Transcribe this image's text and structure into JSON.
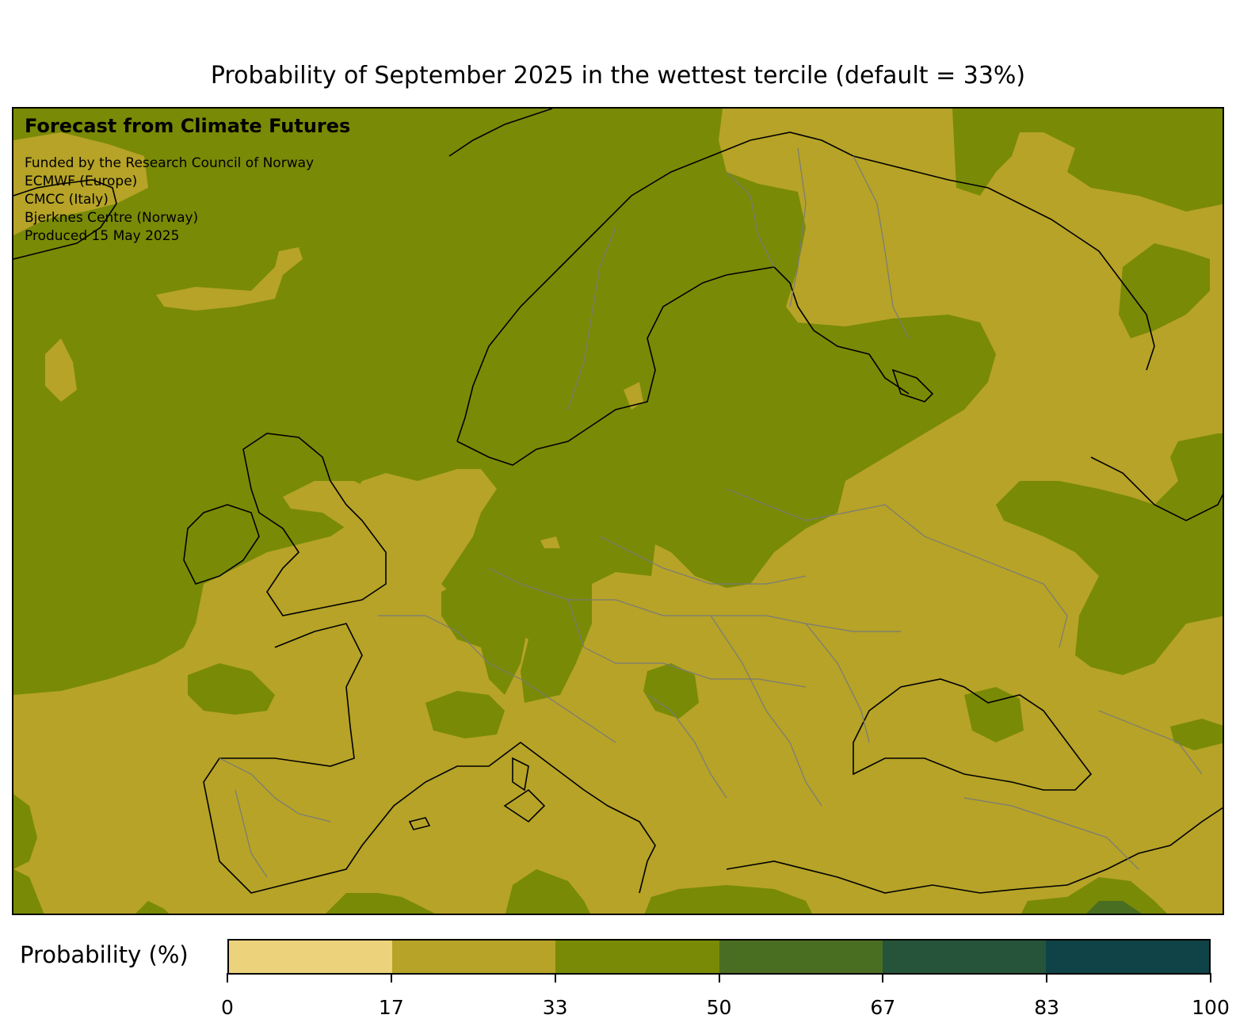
{
  "title": "Probability of September 2025 in the wettest tercile (default = 33%)",
  "credits": {
    "heading": "Forecast from Climate Futures",
    "lines": [
      "Funded by the Research Council of Norway",
      "ECMWF (Europe)",
      "CMCC (Italy)",
      "Bjerknes Centre (Norway)",
      "Produced 15 May 2025"
    ]
  },
  "colorbar": {
    "label": "Probability (%)",
    "ticks": [
      "0",
      "17",
      "33",
      "50",
      "67",
      "83",
      "100"
    ],
    "colors": [
      "#ecd27a",
      "#b6a327",
      "#798a06",
      "#4a6e21",
      "#26543a",
      "#0f4347"
    ]
  },
  "map": {
    "region": "Europe",
    "dominant_class_colors": {
      "17-33": "#b6a327",
      "33-50": "#798a06",
      "50-67": "#4a6e21"
    }
  }
}
